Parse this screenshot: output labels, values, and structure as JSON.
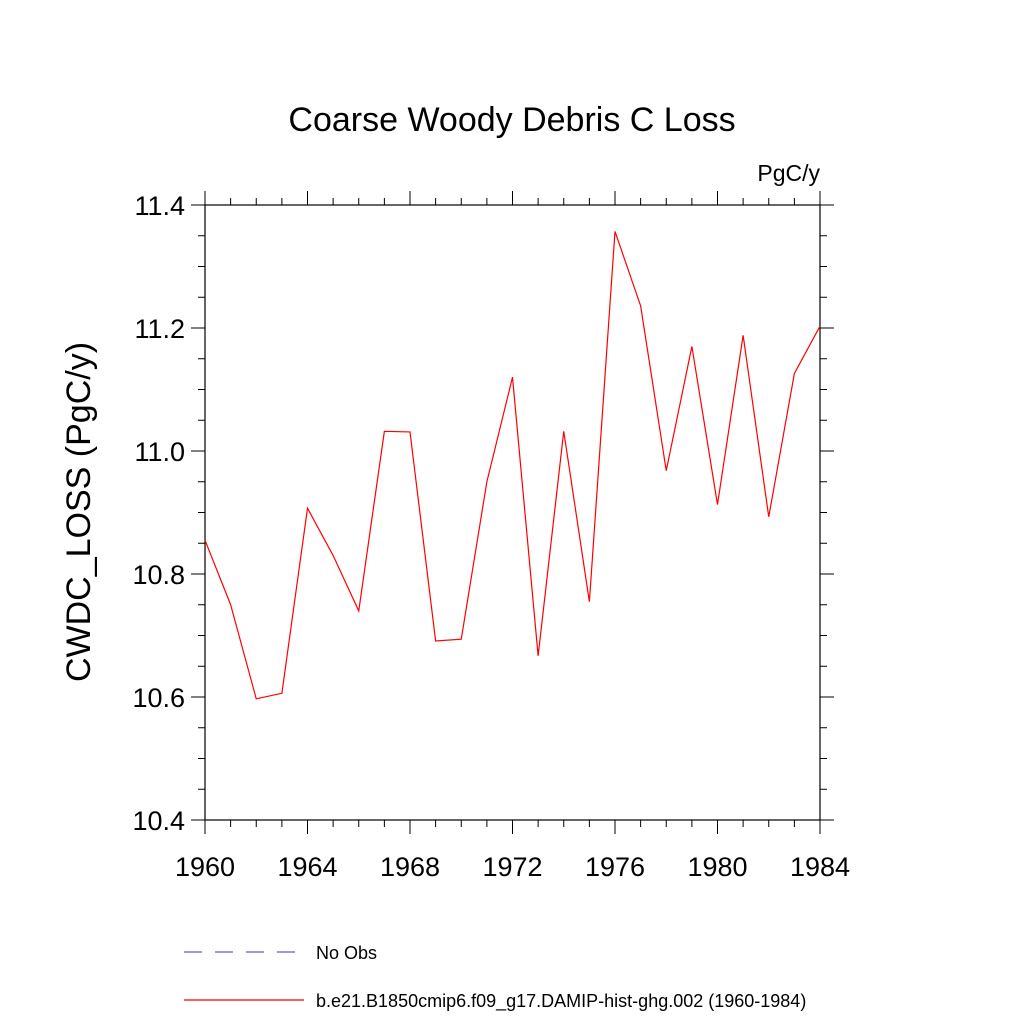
{
  "chart_data": {
    "type": "line",
    "title": "Coarse Woody Debris C Loss",
    "units_label": "PgC/y",
    "ylabel": "CWDC_LOSS  (PgC/y)",
    "xlabel": "",
    "xlim": [
      1960,
      1984
    ],
    "ylim": [
      10.4,
      11.4
    ],
    "x_ticks": [
      1960,
      1964,
      1968,
      1972,
      1976,
      1980,
      1984
    ],
    "x_tick_labels": [
      "1960",
      "1964",
      "1968",
      "1972",
      "1976",
      "1980",
      "1984"
    ],
    "y_ticks": [
      10.4,
      10.6,
      10.8,
      11.0,
      11.2,
      11.4
    ],
    "y_tick_labels": [
      "10.4",
      "10.6",
      "10.8",
      "11.0",
      "11.2",
      "11.4"
    ],
    "grid": false,
    "legend_placement": "bottom",
    "series": [
      {
        "name": "b.e21.B1850cmip6.f09_g17.DAMIP-hist-ghg.002 (1960-1984)",
        "color": "#ff0000",
        "style": "solid",
        "x": [
          1960,
          1961,
          1962,
          1963,
          1964,
          1965,
          1966,
          1967,
          1968,
          1969,
          1970,
          1971,
          1972,
          1973,
          1974,
          1975,
          1976,
          1977,
          1978,
          1979,
          1980,
          1981,
          1982,
          1983,
          1984
        ],
        "values": [
          10.855,
          10.75,
          10.597,
          10.606,
          10.907,
          10.83,
          10.74,
          11.032,
          11.031,
          10.691,
          10.694,
          10.95,
          11.12,
          10.667,
          11.032,
          10.755,
          11.357,
          11.236,
          10.968,
          11.17,
          10.913,
          11.188,
          10.893,
          11.126,
          11.203
        ]
      }
    ],
    "legend": [
      {
        "label": "No Obs",
        "color": "#6a5acd",
        "style": "dashed"
      },
      {
        "label": "b.e21.B1850cmip6.f09_g17.DAMIP-hist-ghg.002 (1960-1984)",
        "color": "#ff0000",
        "style": "solid"
      }
    ]
  }
}
